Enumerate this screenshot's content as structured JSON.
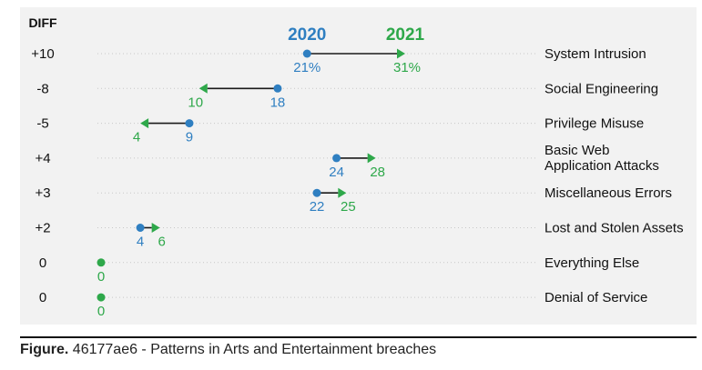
{
  "caption": {
    "lead": "Figure.",
    "text": "46177ae6 - Patterns in Arts and Entertainment breaches"
  },
  "colors": {
    "y2020": "#2f7fc1",
    "y2021": "#2ea84a",
    "arrow": "#1a1a1a",
    "dots": "#c8c8c8"
  },
  "chart_data": {
    "type": "dumbbell",
    "diff_header": "DIFF",
    "legend": {
      "from": "2020",
      "to": "2021"
    },
    "xlim": [
      0,
      31
    ],
    "rows": [
      {
        "label": "System Intrusion",
        "diff": "+10",
        "from": 21,
        "to": 31,
        "from_label": "21%",
        "to_label": "31%"
      },
      {
        "label": "Social Engineering",
        "diff": "-8",
        "from": 18,
        "to": 10,
        "from_label": "18",
        "to_label": "10"
      },
      {
        "label": "Privilege Misuse",
        "diff": "-5",
        "from": 9,
        "to": 4,
        "from_label": "9",
        "to_label": "4"
      },
      {
        "label": "Basic Web Application Attacks",
        "label_lines": [
          "Basic Web",
          "Application Attacks"
        ],
        "diff": "+4",
        "from": 24,
        "to": 28,
        "from_label": "24",
        "to_label": "28"
      },
      {
        "label": "Miscellaneous Errors",
        "diff": "+3",
        "from": 22,
        "to": 25,
        "from_label": "22",
        "to_label": "25"
      },
      {
        "label": "Lost and Stolen Assets",
        "diff": "+2",
        "from": 4,
        "to": 6,
        "from_label": "4",
        "to_label": "6"
      },
      {
        "label": "Everything Else",
        "diff": "0",
        "from": 0,
        "to": 0,
        "from_label": "0",
        "to_label": "0"
      },
      {
        "label": "Denial of Service",
        "diff": "0",
        "from": 0,
        "to": 0,
        "from_label": "0",
        "to_label": "0"
      }
    ]
  }
}
